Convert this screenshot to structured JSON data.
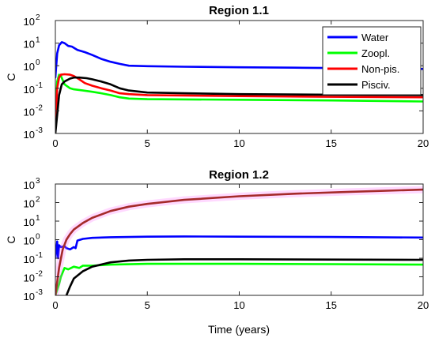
{
  "chart_data": [
    {
      "type": "line",
      "title": "Region 1.1",
      "xlabel": "",
      "ylabel": "C",
      "xlim": [
        0,
        20
      ],
      "ylim": [
        0.001,
        100
      ],
      "yscale": "log",
      "xticks": [
        0,
        5,
        10,
        15,
        20
      ],
      "yticks": [
        {
          "base": "10",
          "exp": "-3",
          "value": 0.001
        },
        {
          "base": "10",
          "exp": "-2",
          "value": 0.01
        },
        {
          "base": "10",
          "exp": "-1",
          "value": 0.1
        },
        {
          "base": "10",
          "exp": "0",
          "value": 1
        },
        {
          "base": "10",
          "exp": "1",
          "value": 10
        },
        {
          "base": "10",
          "exp": "2",
          "value": 100
        }
      ],
      "legend": {
        "position": "top-right",
        "entries": [
          "Water",
          "Zoopl.",
          "Non-pis.",
          "Pisciv."
        ]
      },
      "series": [
        {
          "name": "Water",
          "color": "#0000ff",
          "x": [
            0,
            0.1,
            0.2,
            0.35,
            0.5,
            0.7,
            0.9,
            1.2,
            1.6,
            2.0,
            2.5,
            3.0,
            3.5,
            4,
            5,
            7,
            10,
            13,
            16,
            20
          ],
          "y": [
            0.3,
            3.5,
            8,
            11,
            10,
            7.5,
            7,
            5,
            4,
            3,
            2,
            1.5,
            1.2,
            1.0,
            0.95,
            0.9,
            0.85,
            0.82,
            0.78,
            0.72
          ]
        },
        {
          "name": "Zoopl.",
          "color": "#00ff00",
          "x": [
            0,
            0.1,
            0.2,
            0.3,
            0.5,
            0.8,
            1.0,
            1.5,
            2.0,
            2.5,
            3,
            3.5,
            4,
            5,
            10,
            15,
            20
          ],
          "y": [
            0.005,
            0.2,
            0.4,
            0.35,
            0.15,
            0.1,
            0.09,
            0.08,
            0.07,
            0.06,
            0.05,
            0.04,
            0.035,
            0.033,
            0.031,
            0.029,
            0.026
          ]
        },
        {
          "name": "Non-pis.",
          "color": "#ff0000",
          "x": [
            0,
            0.1,
            0.2,
            0.3,
            0.5,
            0.8,
            1.0,
            1.3,
            1.6,
            2.0,
            2.5,
            3,
            3.5,
            4,
            5,
            7,
            10,
            15,
            20
          ],
          "y": [
            0.002,
            0.1,
            0.3,
            0.4,
            0.42,
            0.4,
            0.35,
            0.25,
            0.17,
            0.13,
            0.1,
            0.08,
            0.06,
            0.055,
            0.05,
            0.048,
            0.045,
            0.042,
            0.04
          ]
        },
        {
          "name": "Pisciv.",
          "color": "#000000",
          "x": [
            0,
            0.12,
            0.2,
            0.35,
            0.5,
            0.8,
            1.0,
            1.3,
            1.7,
            2.0,
            2.5,
            3,
            3.5,
            4,
            5,
            7,
            10,
            15,
            20
          ],
          "y": [
            0.001,
            0.01,
            0.05,
            0.15,
            0.2,
            0.27,
            0.3,
            0.3,
            0.28,
            0.25,
            0.2,
            0.15,
            0.1,
            0.08,
            0.065,
            0.06,
            0.055,
            0.052,
            0.05
          ]
        }
      ]
    },
    {
      "type": "line",
      "title": "Region 1.2",
      "xlabel": "Time (years)",
      "ylabel": "C",
      "xlim": [
        0,
        20
      ],
      "ylim": [
        0.001,
        1000
      ],
      "yscale": "log",
      "xticks": [
        0,
        5,
        10,
        15,
        20
      ],
      "yticks": [
        {
          "base": "10",
          "exp": "-3",
          "value": 0.001
        },
        {
          "base": "10",
          "exp": "-2",
          "value": 0.01
        },
        {
          "base": "10",
          "exp": "-1",
          "value": 0.1
        },
        {
          "base": "10",
          "exp": "0",
          "value": 1
        },
        {
          "base": "10",
          "exp": "1",
          "value": 10
        },
        {
          "base": "10",
          "exp": "2",
          "value": 100
        },
        {
          "base": "10",
          "exp": "3",
          "value": 1000
        }
      ],
      "series": [
        {
          "name": "Water",
          "color": "#0000ff",
          "x": [
            0,
            0.1,
            0.15,
            0.2,
            0.3,
            0.5,
            0.6,
            0.8,
            1.0,
            1.1,
            1.2,
            1.5,
            2,
            3,
            5,
            7,
            10,
            15,
            20
          ],
          "y": [
            0.1,
            0.8,
            0.1,
            0.5,
            0.4,
            0.45,
            0.35,
            0.3,
            0.4,
            0.35,
            0.9,
            1.1,
            1.25,
            1.35,
            1.45,
            1.5,
            1.45,
            1.4,
            1.3
          ]
        },
        {
          "name": "Zoopl.",
          "color": "#00ff00",
          "x": [
            0,
            0.2,
            0.3,
            0.5,
            0.7,
            1.0,
            1.3,
            1.5,
            2,
            3,
            5,
            10,
            15,
            20
          ],
          "y": [
            0.001,
            0.004,
            0.01,
            0.03,
            0.025,
            0.035,
            0.03,
            0.04,
            0.04,
            0.045,
            0.05,
            0.05,
            0.048,
            0.045
          ]
        },
        {
          "name": "Non-pis.",
          "color": "#a52a2a",
          "x": [
            0,
            0.2,
            0.4,
            0.6,
            0.8,
            1.0,
            1.5,
            2,
            3,
            4,
            5,
            7,
            10,
            13,
            16,
            20
          ],
          "y": [
            0.001,
            0.03,
            0.3,
            1,
            2,
            3.5,
            8,
            15,
            35,
            60,
            85,
            140,
            220,
            300,
            380,
            500
          ]
        },
        {
          "name": "Pisciv.",
          "color": "#000000",
          "x": [
            0.6,
            0.8,
            1.0,
            1.5,
            2,
            3,
            4,
            5,
            7,
            10,
            15,
            20
          ],
          "y": [
            0.001,
            0.003,
            0.008,
            0.02,
            0.035,
            0.06,
            0.075,
            0.082,
            0.088,
            0.088,
            0.085,
            0.082
          ]
        }
      ]
    }
  ]
}
